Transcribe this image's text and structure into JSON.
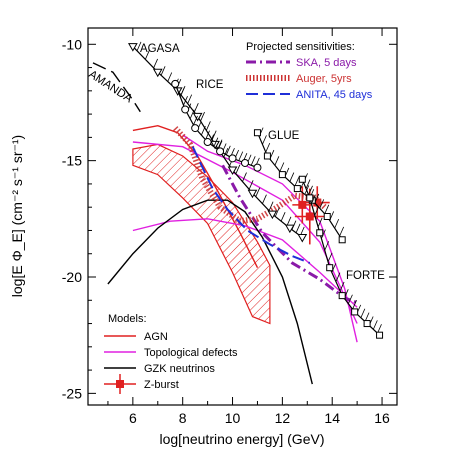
{
  "chart_data": {
    "type": "line",
    "xlabel": "log[neutrino energy] (GeV)",
    "ylabel": "log[E Φ_E] (cm⁻² s⁻¹ sr⁻¹)",
    "xlim": [
      4.2,
      16.6
    ],
    "ylim": [
      -25.5,
      -9.3
    ],
    "x_ticks": [
      6,
      8,
      10,
      12,
      14,
      16
    ],
    "y_ticks": [
      -10,
      -15,
      -20,
      -25
    ],
    "legend_title": "Projected sensitivities:",
    "models_title": "Models:",
    "projected": [
      {
        "name": "SKA, 5 days",
        "color": "#8a1aa8",
        "style": "dashdot",
        "points": [
          [
            9.6,
            -15.2
          ],
          [
            10.3,
            -16.6
          ],
          [
            11.2,
            -18.1
          ],
          [
            12.4,
            -19.4
          ],
          [
            13.5,
            -20.1
          ],
          [
            14.5,
            -20.9
          ],
          [
            15.0,
            -21.1
          ]
        ]
      },
      {
        "name": "Auger, 5yrs",
        "color": "#cc3333",
        "style": "hatched",
        "points": [
          [
            7.7,
            -13.6
          ],
          [
            8.3,
            -14.3
          ],
          [
            8.8,
            -15.8
          ],
          [
            9.5,
            -17.0
          ],
          [
            10.3,
            -17.6
          ],
          [
            11.0,
            -17.5
          ],
          [
            11.8,
            -17.0
          ],
          [
            12.5,
            -16.5
          ],
          [
            13.3,
            -16.6
          ],
          [
            13.7,
            -17.0
          ]
        ]
      },
      {
        "name": "ANITA, 45 days",
        "color": "#1f2fd8",
        "style": "dashed",
        "points": [
          [
            8.4,
            -14.4
          ],
          [
            8.8,
            -15.3
          ],
          [
            9.2,
            -16.2
          ],
          [
            9.8,
            -17.1
          ],
          [
            10.6,
            -18.0
          ],
          [
            11.5,
            -18.6
          ],
          [
            12.4,
            -19.1
          ],
          [
            13.1,
            -19.4
          ]
        ]
      }
    ],
    "experiments": [
      {
        "name": "AGASA",
        "marker": "triangle",
        "points": [
          [
            6.0,
            -10.1
          ],
          [
            7.0,
            -11.2
          ],
          [
            7.8,
            -12.0
          ],
          [
            8.6,
            -13.1
          ],
          [
            9.3,
            -14.3
          ],
          [
            10.0,
            -15.4
          ],
          [
            10.8,
            -16.4
          ],
          [
            11.6,
            -17.3
          ],
          [
            12.3,
            -17.9
          ],
          [
            12.8,
            -18.3
          ]
        ]
      },
      {
        "name": "RICE",
        "marker": "circle",
        "points": [
          [
            7.7,
            -11.7
          ],
          [
            8.1,
            -12.8
          ],
          [
            8.5,
            -13.6
          ],
          [
            9.0,
            -14.2
          ],
          [
            9.5,
            -14.6
          ],
          [
            10.0,
            -14.9
          ],
          [
            10.5,
            -15.1
          ],
          [
            11.0,
            -15.3
          ]
        ]
      },
      {
        "name": "GLUE",
        "marker": "square",
        "points": [
          [
            11.0,
            -13.8
          ],
          [
            11.4,
            -14.8
          ],
          [
            12.0,
            -15.6
          ],
          [
            12.6,
            -16.2
          ],
          [
            13.2,
            -16.7
          ],
          [
            13.8,
            -17.4
          ],
          [
            14.4,
            -18.4
          ]
        ]
      },
      {
        "name": "FORTE",
        "marker": "square",
        "points": [
          [
            12.8,
            -15.8
          ],
          [
            13.1,
            -16.6
          ],
          [
            13.5,
            -18.1
          ],
          [
            13.9,
            -19.6
          ],
          [
            14.4,
            -20.8
          ],
          [
            14.9,
            -21.5
          ],
          [
            15.4,
            -22.0
          ],
          [
            15.9,
            -22.5
          ]
        ]
      },
      {
        "name": "AMANDA",
        "marker": "none",
        "points": [
          [
            4.4,
            -10.8
          ],
          [
            5.2,
            -11.2
          ],
          [
            6.0,
            -12.4
          ],
          [
            6.3,
            -12.9
          ]
        ]
      }
    ],
    "models": [
      {
        "name": "AGN",
        "color": "#e02020",
        "bands": [
          {
            "upper": [
              [
                6,
                -14.5
              ],
              [
                7,
                -14.3
              ],
              [
                8,
                -14.8
              ],
              [
                9,
                -15.7
              ],
              [
                10,
                -16.8
              ],
              [
                11,
                -18.5
              ],
              [
                11.5,
                -19.5
              ]
            ],
            "lower": [
              [
                6,
                -15.2
              ],
              [
                7,
                -15.6
              ],
              [
                8,
                -16.6
              ],
              [
                9,
                -17.7
              ],
              [
                10,
                -19.8
              ],
              [
                10.8,
                -21.7
              ],
              [
                11.5,
                -22.0
              ]
            ]
          }
        ],
        "lines": [
          [
            [
              6,
              -13.7
            ],
            [
              7,
              -13.5
            ],
            [
              7.8,
              -13.8
            ],
            [
              8.6,
              -14.8
            ],
            [
              9.4,
              -16.3
            ],
            [
              10.3,
              -18.1
            ],
            [
              11.0,
              -19.6
            ]
          ]
        ]
      },
      {
        "name": "Topological defects",
        "color": "#e020e0",
        "lines": [
          [
            [
              6,
              -14.2
            ],
            [
              8,
              -14.4
            ],
            [
              10,
              -15.5
            ],
            [
              12,
              -16.7
            ],
            [
              13.5,
              -18.5
            ],
            [
              15,
              -22.0
            ]
          ],
          [
            [
              6,
              -18.0
            ],
            [
              7.5,
              -17.6
            ],
            [
              9,
              -17.5
            ],
            [
              10.5,
              -17.8
            ],
            [
              12,
              -18.4
            ],
            [
              13.5,
              -19.8
            ],
            [
              15,
              -21.3
            ]
          ],
          [
            [
              8,
              -13.9
            ],
            [
              9,
              -14.6
            ],
            [
              10.5,
              -15.2
            ],
            [
              12,
              -16.0
            ],
            [
              13.5,
              -17.6
            ],
            [
              14.5,
              -20.5
            ],
            [
              15,
              -22.8
            ]
          ]
        ]
      },
      {
        "name": "GZK neutrinos",
        "color": "#000000",
        "lines": [
          [
            [
              5.0,
              -20.3
            ],
            [
              6,
              -19.0
            ],
            [
              7,
              -17.9
            ],
            [
              8,
              -17.1
            ],
            [
              9,
              -16.7
            ],
            [
              9.8,
              -16.7
            ],
            [
              10.5,
              -17.2
            ],
            [
              11.2,
              -18.3
            ],
            [
              12.0,
              -20.0
            ],
            [
              12.6,
              -22.0
            ],
            [
              13.2,
              -24.6
            ]
          ]
        ]
      },
      {
        "name": "Z-burst",
        "color": "#e02020",
        "marker": "square",
        "points": [
          {
            "x": 12.8,
            "y": -16.9,
            "xerr": 0.4,
            "yerr": 0.8
          },
          {
            "x": 13.1,
            "y": -17.4,
            "xerr": 0.6,
            "yerr": 1.2
          },
          {
            "x": 13.4,
            "y": -16.8,
            "xerr": 0.5,
            "yerr": 0.7
          }
        ]
      }
    ]
  },
  "legend_items": [
    {
      "name": "SKA, 5 days",
      "color": "#8a1aa8"
    },
    {
      "name": "Auger, 5yrs",
      "color": "#cc3333"
    },
    {
      "name": "ANITA, 45 days",
      "color": "#1f2fd8"
    }
  ],
  "model_items": [
    {
      "name": "AGN",
      "color": "#e02020"
    },
    {
      "name": "Topological defects",
      "color": "#e020e0"
    },
    {
      "name": "GZK neutrinos",
      "color": "#000000"
    },
    {
      "name": "Z-burst",
      "color": "#e02020"
    }
  ]
}
